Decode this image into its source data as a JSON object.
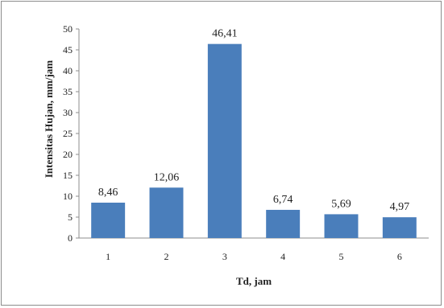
{
  "chart_data": {
    "type": "bar",
    "categories": [
      "1",
      "2",
      "3",
      "4",
      "5",
      "6"
    ],
    "values": [
      8.46,
      12.06,
      46.41,
      6.74,
      5.69,
      4.97
    ],
    "data_labels": [
      "8,46",
      "12,06",
      "46,41",
      "6,74",
      "5,69",
      "4,97"
    ],
    "title": "",
    "xlabel": "Td, jam",
    "ylabel": "Intensitas Hujan, mm/jam",
    "ylim": [
      0,
      50
    ],
    "yticks": [
      "0",
      "5",
      "10",
      "15",
      "20",
      "25",
      "30",
      "35",
      "40",
      "45",
      "50"
    ],
    "grid": false,
    "legend": "none",
    "bar_color": "#4a7ebb"
  }
}
